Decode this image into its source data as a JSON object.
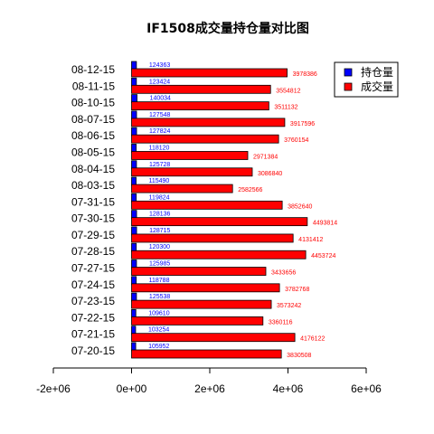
{
  "chart_data": {
    "type": "bar",
    "orientation": "horizontal",
    "title": "IF1508成交量持仓量对比图",
    "xlabel": "",
    "ylabel": "",
    "xlim": [
      -2000000,
      6000000
    ],
    "xticks": [
      -2000000,
      0,
      2000000,
      4000000,
      6000000
    ],
    "xtick_labels": [
      "-2e+06",
      "0e+00",
      "2e+06",
      "4e+06",
      "6e+06"
    ],
    "categories": [
      "07-20-15",
      "07-21-15",
      "07-22-15",
      "07-23-15",
      "07-24-15",
      "07-27-15",
      "07-28-15",
      "07-29-15",
      "07-30-15",
      "07-31-15",
      "08-03-15",
      "08-04-15",
      "08-05-15",
      "08-06-15",
      "08-07-15",
      "08-10-15",
      "08-11-15",
      "08-12-15"
    ],
    "series": [
      {
        "name": "持仓量",
        "color": "#0000ff",
        "values": [
          105952,
          103254,
          109610,
          125538,
          118788,
          125985,
          120300,
          128715,
          128136,
          119824,
          115490,
          125728,
          118120,
          127824,
          127548,
          140034,
          123424,
          124363
        ]
      },
      {
        "name": "成交量",
        "color": "#ff0000",
        "values": [
          3830508,
          4176122,
          3360116,
          3573242,
          3782768,
          3433656,
          4453724,
          4131412,
          4493814,
          3852640,
          2582566,
          3086840,
          2971384,
          3760154,
          3917596,
          3511132,
          3554812,
          3978386
        ]
      }
    ],
    "legend_position": "top-right",
    "grid": false
  }
}
